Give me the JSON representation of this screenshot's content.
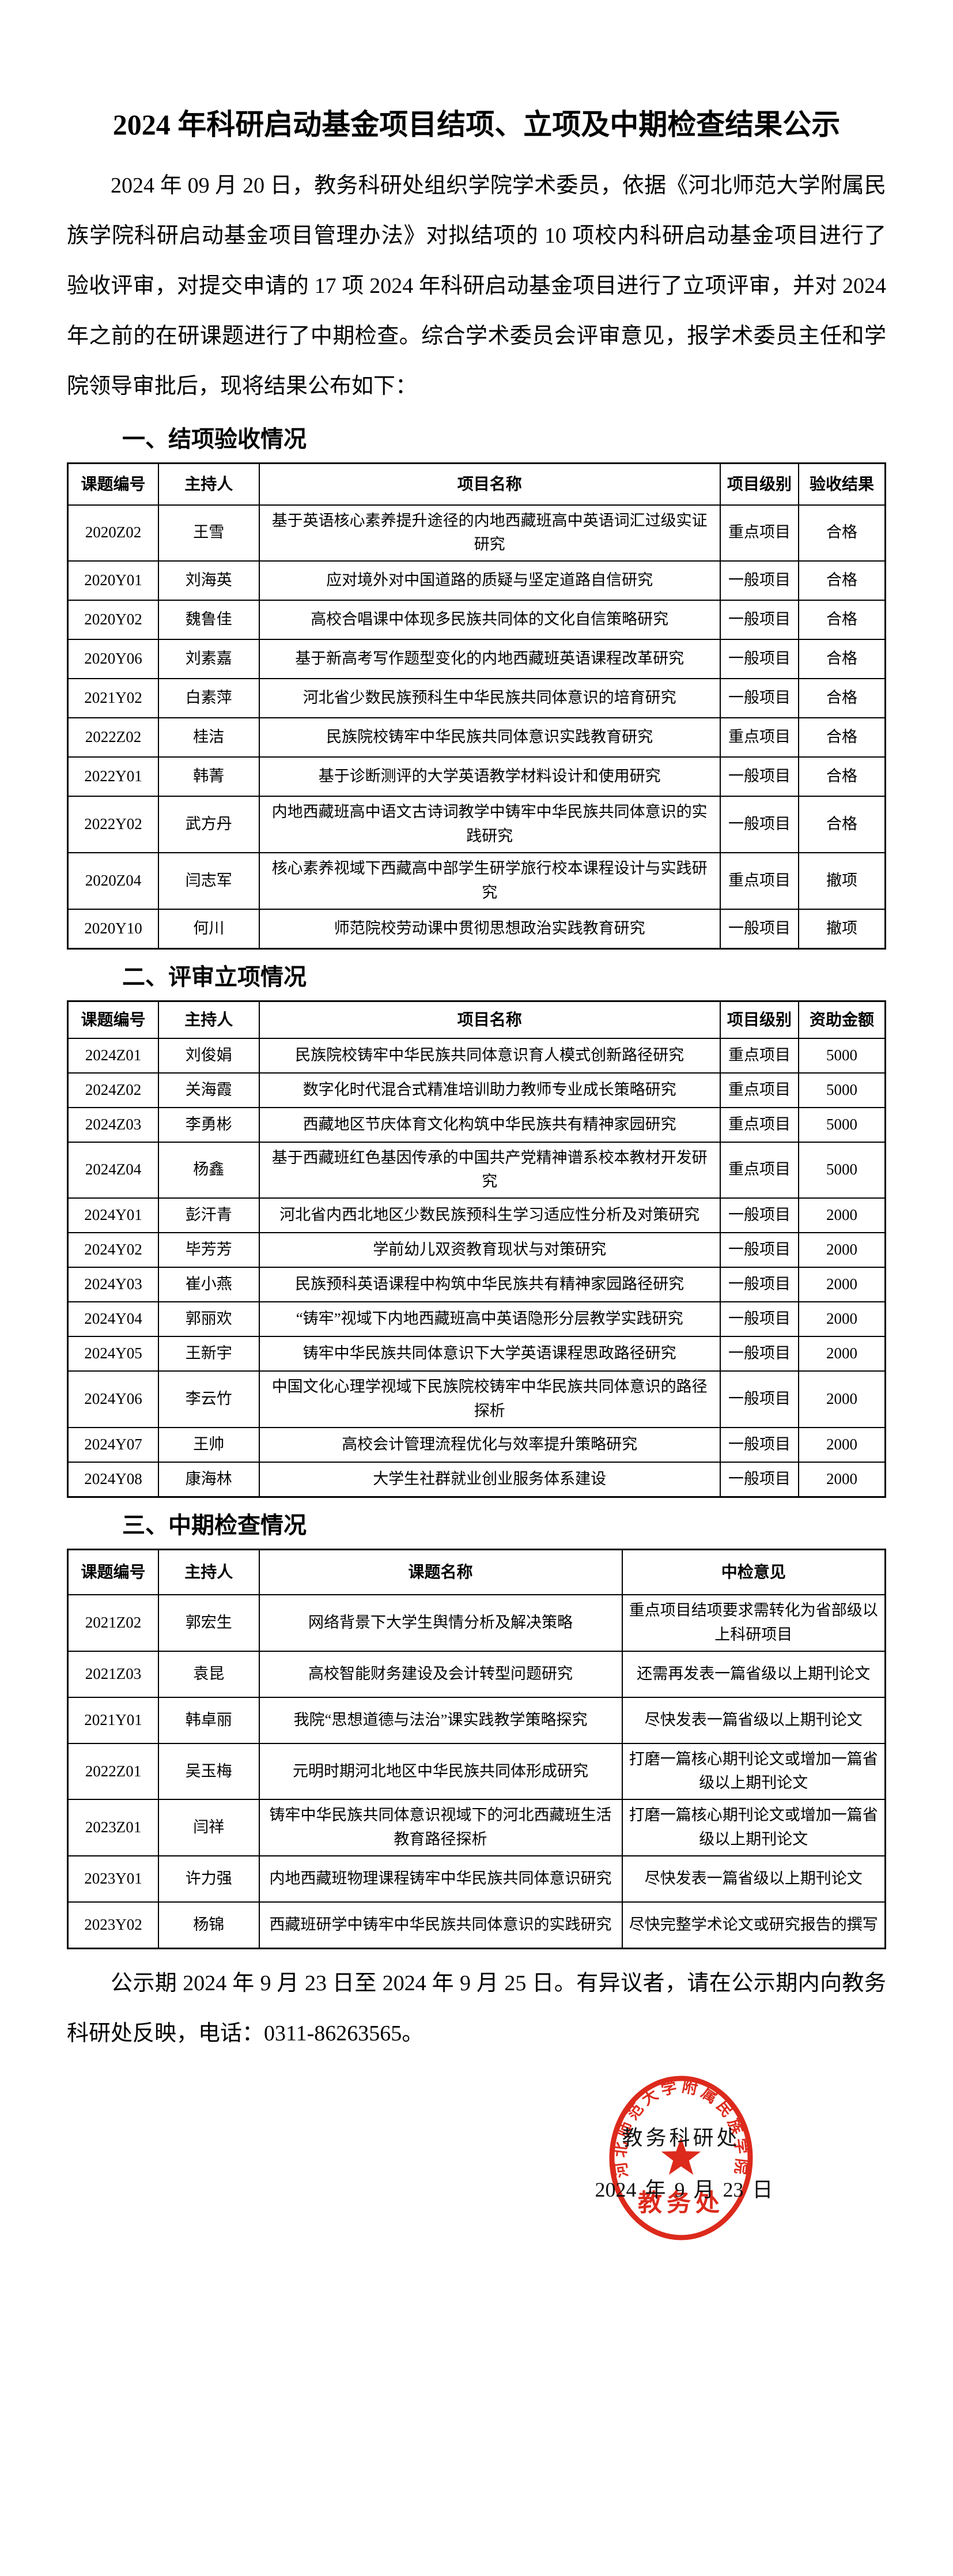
{
  "page": {
    "title": "2024 年科研启动基金项目结项、立项及中期检查结果公示",
    "intro": "2024 年 09 月 20 日，教务科研处组织学院学术委员，依据《河北师范大学附属民族学院科研启动基金项目管理办法》对拟结项的 10 项校内科研启动基金项目进行了验收评审，对提交申请的 17 项 2024 年科研启动基金项目进行了立项评审，并对 2024 年之前的在研课题进行了中期检查。综合学术委员会评审意见，报学术委员主任和学院领导审批后，现将结果公布如下：",
    "sections": [
      {
        "heading": "一、结项验收情况",
        "table": {
          "headers": [
            "课题编号",
            "主持人",
            "项目名称",
            "项目级别",
            "验收结果"
          ],
          "rows": [
            [
              "2020Z02",
              "王雪",
              "基于英语核心素养提升途径的内地西藏班高中英语词汇过级实证研究",
              "重点项目",
              "合格"
            ],
            [
              "2020Y01",
              "刘海英",
              "应对境外对中国道路的质疑与坚定道路自信研究",
              "一般项目",
              "合格"
            ],
            [
              "2020Y02",
              "魏鲁佳",
              "高校合唱课中体现多民族共同体的文化自信策略研究",
              "一般项目",
              "合格"
            ],
            [
              "2020Y06",
              "刘素嘉",
              "基于新高考写作题型变化的内地西藏班英语课程改革研究",
              "一般项目",
              "合格"
            ],
            [
              "2021Y02",
              "白素萍",
              "河北省少数民族预科生中华民族共同体意识的培育研究",
              "一般项目",
              "合格"
            ],
            [
              "2022Z02",
              "桂洁",
              "民族院校铸牢中华民族共同体意识实践教育研究",
              "重点项目",
              "合格"
            ],
            [
              "2022Y01",
              "韩菁",
              "基于诊断测评的大学英语教学材料设计和使用研究",
              "一般项目",
              "合格"
            ],
            [
              "2022Y02",
              "武方丹",
              "内地西藏班高中语文古诗词教学中铸牢中华民族共同体意识的实践研究",
              "一般项目",
              "合格"
            ],
            [
              "2020Z04",
              "闫志军",
              "核心素养视域下西藏高中部学生研学旅行校本课程设计与实践研究",
              "重点项目",
              "撤项"
            ],
            [
              "2020Y10",
              "何川",
              "师范院校劳动课中贯彻思想政治实践教育研究",
              "一般项目",
              "撤项"
            ]
          ]
        }
      },
      {
        "heading": "二、评审立项情况",
        "table": {
          "headers": [
            "课题编号",
            "主持人",
            "项目名称",
            "项目级别",
            "资助金额"
          ],
          "rows": [
            [
              "2024Z01",
              "刘俊娟",
              "民族院校铸牢中华民族共同体意识育人模式创新路径研究",
              "重点项目",
              "5000"
            ],
            [
              "2024Z02",
              "关海霞",
              "数字化时代混合式精准培训助力教师专业成长策略研究",
              "重点项目",
              "5000"
            ],
            [
              "2024Z03",
              "李勇彬",
              "西藏地区节庆体育文化构筑中华民族共有精神家园研究",
              "重点项目",
              "5000"
            ],
            [
              "2024Z04",
              "杨鑫",
              "基于西藏班红色基因传承的中国共产党精神谱系校本教材开发研究",
              "重点项目",
              "5000"
            ],
            [
              "2024Y01",
              "彭汗青",
              "河北省内西北地区少数民族预科生学习适应性分析及对策研究",
              "一般项目",
              "2000"
            ],
            [
              "2024Y02",
              "毕芳芳",
              "学前幼儿双资教育现状与对策研究",
              "一般项目",
              "2000"
            ],
            [
              "2024Y03",
              "崔小燕",
              "民族预科英语课程中构筑中华民族共有精神家园路径研究",
              "一般项目",
              "2000"
            ],
            [
              "2024Y04",
              "郭丽欢",
              "“铸牢”视域下内地西藏班高中英语隐形分层教学实践研究",
              "一般项目",
              "2000"
            ],
            [
              "2024Y05",
              "王新宇",
              "铸牢中华民族共同体意识下大学英语课程思政路径研究",
              "一般项目",
              "2000"
            ],
            [
              "2024Y06",
              "李云竹",
              "中国文化心理学视域下民族院校铸牢中华民族共同体意识的路径探析",
              "一般项目",
              "2000"
            ],
            [
              "2024Y07",
              "王帅",
              "高校会计管理流程优化与效率提升策略研究",
              "一般项目",
              "2000"
            ],
            [
              "2024Y08",
              "康海林",
              "大学生社群就业创业服务体系建设",
              "一般项目",
              "2000"
            ]
          ]
        }
      },
      {
        "heading": "三、中期检查情况",
        "table": {
          "headers": [
            "课题编号",
            "主持人",
            "课题名称",
            "中检意见"
          ],
          "rows": [
            [
              "2021Z02",
              "郭宏生",
              "网络背景下大学生舆情分析及解决策略",
              "重点项目结项要求需转化为省部级以上科研项目"
            ],
            [
              "2021Z03",
              "袁昆",
              "高校智能财务建设及会计转型问题研究",
              "还需再发表一篇省级以上期刊论文"
            ],
            [
              "2021Y01",
              "韩卓丽",
              "我院“思想道德与法治”课实践教学策略探究",
              "尽快发表一篇省级以上期刊论文"
            ],
            [
              "2022Z01",
              "吴玉梅",
              "元明时期河北地区中华民族共同体形成研究",
              "打磨一篇核心期刊论文或增加一篇省级以上期刊论文"
            ],
            [
              "2023Z01",
              "闫祥",
              "铸牢中华民族共同体意识视域下的河北西藏班生活教育路径探析",
              "打磨一篇核心期刊论文或增加一篇省级以上期刊论文"
            ],
            [
              "2023Y01",
              "许力强",
              "内地西藏班物理课程铸牢中华民族共同体意识研究",
              "尽快发表一篇省级以上期刊论文"
            ],
            [
              "2023Y02",
              "杨锦",
              "西藏班研学中铸牢中华民族共同体意识的实践研究",
              "尽快完整学术论文或研究报告的撰写"
            ]
          ]
        }
      }
    ],
    "footer": "公示期 2024 年 9 月 23 日至 2024 年 9 月 25 日。有异议者，请在公示期内向教务科研处反映，电话：0311-86263565。",
    "signature": {
      "department": "教务科研处",
      "date": "2024 年 9 月 23 日"
    },
    "seal": {
      "rim_text": "河北师范大学附属民族学院",
      "bottom_text": "教务处",
      "color": "#dc2a1c"
    }
  }
}
